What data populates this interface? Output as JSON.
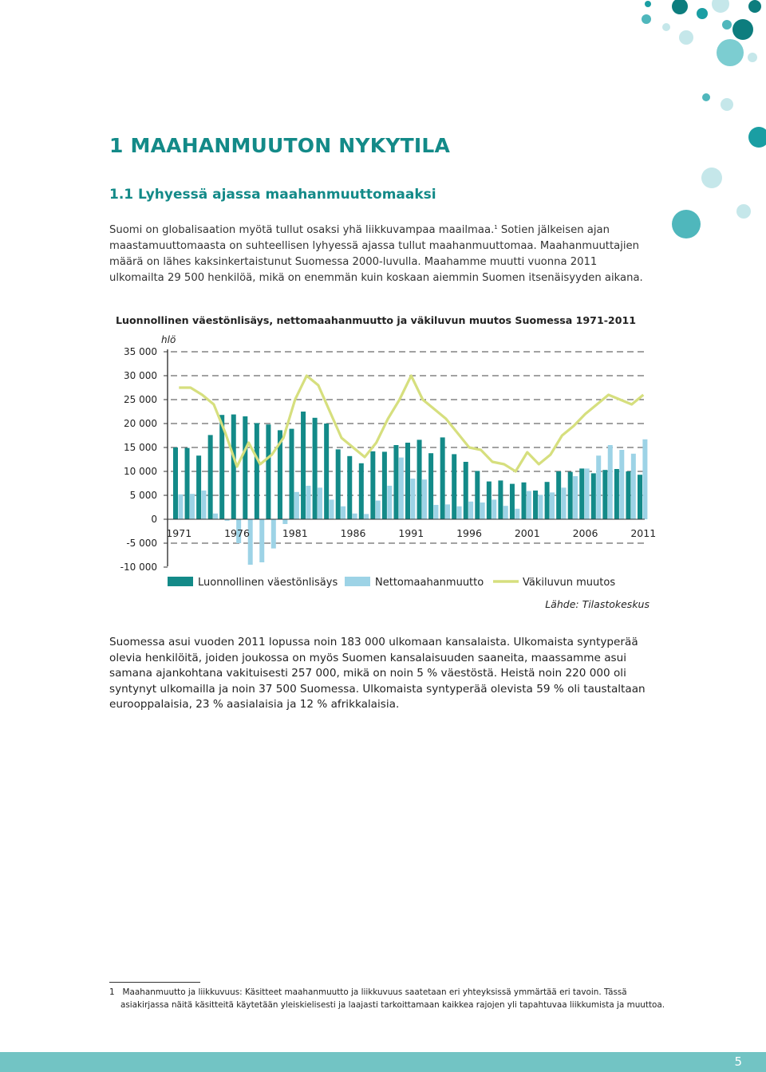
{
  "colors": {
    "heading": "#138a88",
    "natural_increase": "#138a88",
    "net_immigration": "#9dd3e6",
    "population_change": "#d6df7e",
    "bottom_bar": "#72c4c4"
  },
  "heading": {
    "title": "1 MAAHANMUUTON NYKYTILA",
    "subtitle": "1.1 Lyhyessä ajassa maahanmuuttomaaksi"
  },
  "intro": {
    "part1": "Suomi on globalisaation myötä tullut osaksi yhä liikkuvampaa maailmaa.",
    "footnote_ref": "1",
    "part2": " Sotien jälkeisen ajan maastamuuttomaasta on suhteellisen lyhyessä ajassa tullut maahanmuuttomaa. Maahanmuuttajien määrä on lähes kaksinkertaistunut Suomessa 2000-luvulla. Maahamme muutti vuonna 2011 ulkomailta 29 500 henkilöä, mikä on enemmän kuin koskaan aiemmin Suomen itsenäisyyden aikana."
  },
  "chart_data": {
    "type": "bar",
    "title": "Luonnollinen väestönlisäys, nettomaahanmuutto ja väkiluvun muutos Suomessa 1971-2011",
    "unit_label": "hlö",
    "source": "Lähde: Tilastokeskus",
    "ylim": [
      -10000,
      35000
    ],
    "y_ticks": [
      35000,
      30000,
      25000,
      20000,
      15000,
      10000,
      5000,
      0,
      -5000,
      -10000
    ],
    "y_tick_labels": [
      "35 000",
      "30 000",
      "25 000",
      "20 000",
      "15 000",
      "10 000",
      "5 000",
      "0",
      "-5 000",
      "-10 000"
    ],
    "x_tick_labels": [
      "1971",
      "1976",
      "1981",
      "1986",
      "1991",
      "1996",
      "2001",
      "2006",
      "2011"
    ],
    "grid": "dashed horizontal",
    "legend_position": "bottom",
    "years": [
      1971,
      1972,
      1973,
      1974,
      1975,
      1976,
      1977,
      1978,
      1979,
      1980,
      1981,
      1982,
      1983,
      1984,
      1985,
      1986,
      1987,
      1988,
      1989,
      1990,
      1991,
      1992,
      1993,
      1994,
      1995,
      1996,
      1997,
      1998,
      1999,
      2000,
      2001,
      2002,
      2003,
      2004,
      2005,
      2006,
      2007,
      2008,
      2009,
      2010,
      2011
    ],
    "series": [
      {
        "name": "Luonnollinen väestönlisäys",
        "kind": "bar",
        "values": [
          15000,
          14900,
          13300,
          17600,
          21800,
          21900,
          21500,
          20100,
          19800,
          18600,
          18900,
          22500,
          21200,
          20000,
          14600,
          13200,
          11700,
          14200,
          14100,
          15500,
          16000,
          16600,
          13800,
          17100,
          13600,
          12000,
          10100,
          7900,
          8100,
          7400,
          7700,
          6000,
          7800,
          10000,
          9900,
          10600,
          9600,
          10300,
          10500,
          10000,
          9300
        ]
      },
      {
        "name": "Nettomaahanmuutto",
        "kind": "bar",
        "values": [
          5200,
          5300,
          6000,
          1200,
          -300,
          -5000,
          -9500,
          -9000,
          -6100,
          -1000,
          5700,
          7000,
          6600,
          4100,
          2700,
          1200,
          1100,
          3900,
          7000,
          12900,
          8500,
          8300,
          3000,
          3100,
          2700,
          3700,
          3500,
          4100,
          2800,
          2200,
          5900,
          5100,
          5600,
          6600,
          9000,
          10600,
          13300,
          15500,
          14500,
          13700,
          16700
        ]
      },
      {
        "name": "Väkiluvun muutos",
        "kind": "line",
        "values": [
          27500,
          27500,
          26000,
          24000,
          18000,
          11000,
          16000,
          11500,
          13500,
          17000,
          25000,
          30000,
          28000,
          22500,
          17000,
          15000,
          13000,
          16000,
          21000,
          25000,
          30000,
          25000,
          23000,
          21000,
          18000,
          15000,
          14500,
          12000,
          11500,
          10000,
          14000,
          11500,
          13500,
          17500,
          19500,
          22000,
          24000,
          26000,
          25000,
          24000,
          26000
        ]
      }
    ]
  },
  "body_text": "Suomessa asui vuoden 2011 lopussa noin 183 000 ulkomaan kansalaista. Ulkomaista syntyperää olevia henkilöitä, joiden joukossa on myös Suomen kansalaisuuden saaneita, maassamme asui samana ajankohtana vakituisesti 257 000, mikä on noin 5 % väestöstä. Heistä noin 220 000 oli syntynyt ulkomailla ja noin 37 500 Suomessa. Ulkomaista syntyperää olevista 59 % oli taustaltaan eurooppalaisia, 23 % aasialaisia ja 12 % afrikkalaisia.",
  "footnote": {
    "number": "1",
    "text": "Maahanmuutto ja liikkuvuus: Käsitteet maahanmuutto ja liikkuvuus saatetaan eri yhteyksissä ymmärtää eri tavoin. Tässä asiakirjassa näitä käsitteitä käytetään yleiskielisesti ja laajasti tarkoittamaan kaikkea rajojen yli tapahtuvaa liikkumista ja muuttoa."
  },
  "page_number": "5"
}
